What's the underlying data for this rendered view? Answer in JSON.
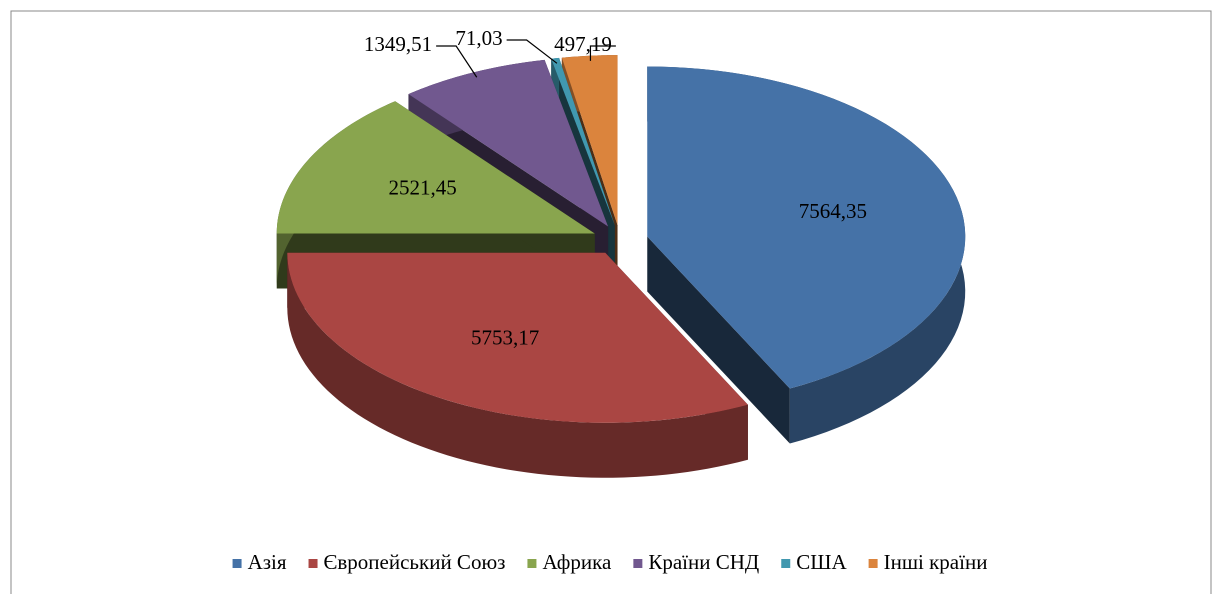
{
  "chart_data": {
    "type": "pie3d",
    "categories": [
      "Азія",
      "Європейський Союз",
      "Африка",
      "Країни СНД",
      "США",
      "Інші країни"
    ],
    "values": [
      7564.35,
      5753.17,
      2521.45,
      1349.51,
      71.03,
      497.19
    ],
    "value_labels": [
      "7564,35",
      "5753,17",
      "2521,45",
      "1349,51",
      "71,03",
      "497,19"
    ],
    "colors": [
      "#4572a7",
      "#aa4643",
      "#89a54e",
      "#71588f",
      "#4198af",
      "#db843d"
    ],
    "legend": "bottom"
  }
}
